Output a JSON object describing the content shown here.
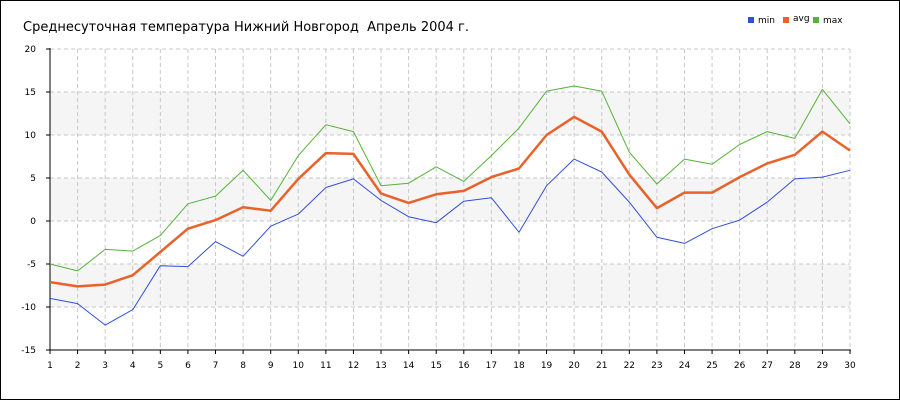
{
  "chart_data": {
    "type": "line",
    "title": "Среднесуточная температура Нижний Новгород  Апрель 2004 г.",
    "xlabel": "",
    "ylabel": "",
    "x": [
      1,
      2,
      3,
      4,
      5,
      6,
      7,
      8,
      9,
      10,
      11,
      12,
      13,
      14,
      15,
      16,
      17,
      18,
      19,
      20,
      21,
      22,
      23,
      24,
      25,
      26,
      27,
      28,
      29,
      30
    ],
    "xlim": [
      1,
      30
    ],
    "ylim": [
      -15,
      20
    ],
    "yticks": [
      -15,
      -10,
      -5,
      0,
      5,
      10,
      15,
      20
    ],
    "grid": true,
    "legend_position": "top-right",
    "series": [
      {
        "name": "min",
        "color": "#3050d8",
        "values": [
          -9,
          -9.6,
          -12.1,
          -10.3,
          -5.2,
          -5.3,
          -2.4,
          -4.1,
          -0.6,
          0.8,
          3.9,
          4.9,
          2.4,
          0.5,
          -0.2,
          2.3,
          2.7,
          -1.3,
          4.1,
          7.2,
          5.7,
          2.2,
          -1.9,
          -2.6,
          -0.9,
          0.1,
          2.2,
          4.9,
          5.1,
          5.9
        ]
      },
      {
        "name": "avg",
        "color": "#e8622a",
        "values": [
          -7.1,
          -7.6,
          -7.4,
          -6.3,
          -3.6,
          -0.9,
          0.1,
          1.6,
          1.2,
          4.9,
          7.9,
          7.8,
          3.2,
          2.1,
          3.1,
          3.5,
          5.1,
          6.1,
          10,
          12.1,
          10.4,
          5.4,
          1.5,
          3.3,
          3.3,
          5.1,
          6.7,
          7.7,
          10.4,
          8.2
        ]
      },
      {
        "name": "max",
        "color": "#56b23a",
        "values": [
          -5,
          -5.8,
          -3.3,
          -3.5,
          -1.7,
          2.0,
          2.9,
          5.9,
          2.4,
          7.6,
          11.2,
          10.4,
          4.1,
          4.4,
          6.3,
          4.6,
          7.6,
          10.8,
          15.1,
          15.7,
          15.1,
          8.0,
          4.3,
          7.2,
          6.6,
          8.9,
          10.4,
          9.6,
          15.3,
          11.3
        ]
      }
    ]
  }
}
